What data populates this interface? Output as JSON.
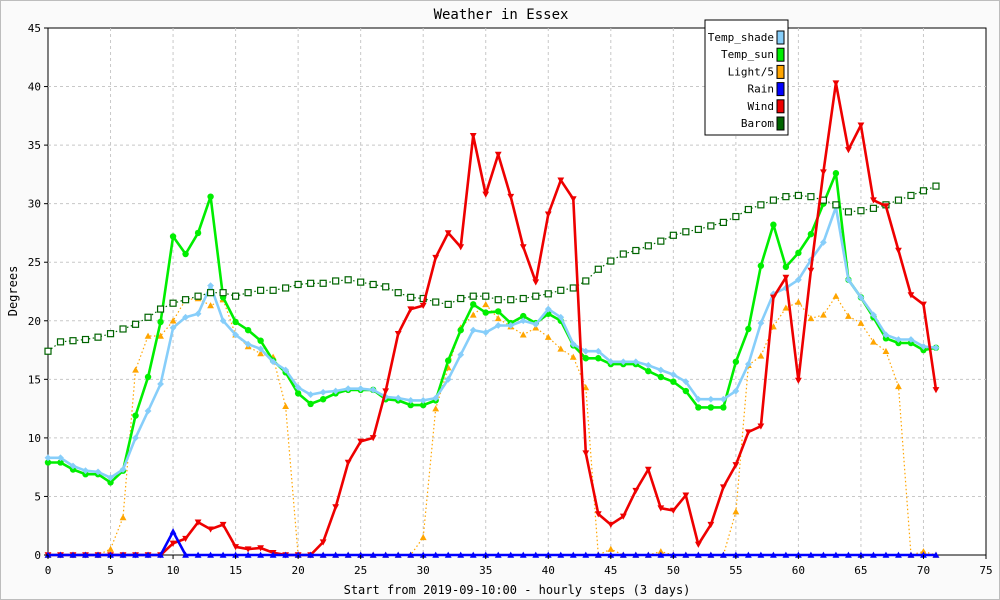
{
  "chart_data": {
    "type": "line",
    "title": "Weather in Essex",
    "xlabel": "Start from 2019-09-10:00 - hourly steps (3 days)",
    "ylabel": "Degrees",
    "xlim": [
      0,
      75
    ],
    "ylim": [
      0,
      45
    ],
    "x_ticks": [
      0,
      5,
      10,
      15,
      20,
      25,
      30,
      35,
      40,
      45,
      50,
      55,
      60,
      65,
      70,
      75
    ],
    "y_ticks": [
      0,
      5,
      10,
      15,
      20,
      25,
      30,
      35,
      40,
      45
    ],
    "grid": true,
    "legend_position": "top-right",
    "series": [
      {
        "name": "Temp_shade",
        "color": "#87cefa",
        "marker": "diamond",
        "line": "solid",
        "values": [
          8.3,
          8.3,
          7.6,
          7.2,
          7.1,
          6.6,
          7.3,
          10.0,
          12.3,
          14.6,
          19.4,
          20.3,
          20.6,
          23.0,
          20.0,
          18.8,
          18.0,
          17.6,
          16.5,
          15.8,
          14.3,
          13.7,
          13.9,
          14.0,
          14.2,
          14.2,
          14.1,
          13.5,
          13.4,
          13.2,
          13.2,
          13.4,
          15.0,
          17.1,
          19.2,
          19.0,
          19.6,
          19.6,
          20.0,
          19.7,
          21.0,
          20.3,
          18.0,
          17.4,
          17.4,
          16.5,
          16.5,
          16.5,
          16.2,
          15.8,
          15.4,
          14.8,
          13.3,
          13.3,
          13.3,
          14.0,
          16.3,
          19.8,
          22.3,
          22.8,
          23.5,
          25.2,
          26.7,
          29.7,
          23.5,
          22.0,
          20.5,
          18.8,
          18.4,
          18.4,
          17.8,
          17.7
        ]
      },
      {
        "name": "Temp_sun",
        "color": "#00ee00",
        "marker": "circle",
        "line": "solid",
        "values": [
          7.9,
          7.9,
          7.3,
          6.9,
          6.9,
          6.2,
          7.2,
          11.9,
          15.2,
          19.9,
          27.2,
          25.7,
          27.5,
          30.6,
          22.0,
          19.9,
          19.2,
          18.3,
          16.6,
          15.6,
          13.8,
          12.9,
          13.3,
          13.8,
          14.1,
          14.1,
          14.1,
          13.3,
          13.2,
          12.8,
          12.8,
          13.2,
          16.6,
          19.2,
          21.4,
          20.7,
          20.8,
          19.8,
          20.4,
          19.8,
          20.6,
          20.0,
          17.9,
          16.8,
          16.8,
          16.3,
          16.3,
          16.3,
          15.7,
          15.2,
          14.8,
          14.0,
          12.6,
          12.6,
          12.6,
          16.5,
          19.3,
          24.7,
          28.2,
          24.6,
          25.8,
          27.4,
          30.0,
          32.6,
          23.5,
          22.0,
          20.3,
          18.5,
          18.1,
          18.1,
          17.5,
          17.7
        ]
      },
      {
        "name": "Light/5",
        "color": "#ffa500",
        "marker": "triangle-up",
        "line": "dotted",
        "values": [
          0,
          0,
          0,
          0,
          0,
          0.5,
          3.2,
          15.8,
          18.7,
          18.7,
          20.0,
          21.8,
          21.9,
          21.3,
          21.8,
          18.8,
          17.8,
          17.2,
          16.9,
          12.7,
          0,
          0,
          0,
          0,
          0,
          0,
          0,
          0,
          0,
          0,
          1.5,
          12.5,
          16.0,
          19.4,
          20.5,
          21.4,
          20.2,
          19.5,
          18.8,
          19.4,
          18.6,
          17.6,
          16.9,
          14.3,
          0,
          0.5,
          0,
          0,
          0,
          0.3,
          0,
          0,
          0,
          0,
          0,
          3.7,
          16.2,
          17.0,
          19.5,
          21.1,
          21.6,
          20.2,
          20.5,
          22.1,
          20.4,
          19.8,
          18.2,
          17.4,
          14.4,
          0,
          0.3,
          0
        ]
      },
      {
        "name": "Rain",
        "color": "#0000ff",
        "marker": "triangle-up",
        "line": "solid",
        "values": [
          0,
          0,
          0,
          0,
          0,
          0,
          0,
          0,
          0,
          0,
          2.0,
          0,
          0,
          0,
          0,
          0,
          0,
          0,
          0,
          0,
          0,
          0,
          0,
          0,
          0,
          0,
          0,
          0,
          0,
          0,
          0,
          0,
          0,
          0,
          0,
          0,
          0,
          0,
          0,
          0,
          0,
          0,
          0,
          0,
          0,
          0,
          0,
          0,
          0,
          0,
          0,
          0,
          0,
          0,
          0,
          0,
          0,
          0,
          0,
          0,
          0,
          0,
          0,
          0,
          0,
          0,
          0,
          0,
          0,
          0,
          0,
          0
        ]
      },
      {
        "name": "Wind",
        "color": "#ee0000",
        "marker": "triangle-down",
        "line": "solid",
        "values": [
          0,
          0,
          0,
          0,
          0,
          0,
          0,
          0,
          0,
          0,
          1.0,
          1.4,
          2.8,
          2.2,
          2.6,
          0.7,
          0.5,
          0.6,
          0.2,
          0,
          0,
          0,
          1.1,
          4.1,
          7.9,
          9.7,
          10.0,
          14.0,
          18.9,
          21.0,
          21.3,
          25.4,
          27.5,
          26.3,
          35.8,
          30.8,
          34.2,
          30.6,
          26.3,
          23.3,
          29.1,
          32.0,
          30.4,
          8.7,
          3.5,
          2.6,
          3.3,
          5.5,
          7.3,
          4.0,
          3.8,
          5.1,
          0.9,
          2.6,
          5.8,
          7.7,
          10.5,
          11.0,
          22.0,
          23.7,
          14.9,
          24.3,
          32.7,
          40.3,
          34.6,
          36.7,
          30.3,
          29.8,
          26.0,
          22.2,
          21.4,
          14.1
        ]
      },
      {
        "name": "Barom",
        "color": "#006400",
        "marker": "square-open",
        "line": "dotted",
        "values": [
          17.4,
          18.2,
          18.3,
          18.4,
          18.6,
          18.9,
          19.3,
          19.7,
          20.3,
          21.0,
          21.5,
          21.8,
          22.1,
          22.4,
          22.4,
          22.1,
          22.4,
          22.6,
          22.6,
          22.8,
          23.1,
          23.2,
          23.2,
          23.4,
          23.5,
          23.3,
          23.1,
          22.9,
          22.4,
          22.0,
          21.9,
          21.6,
          21.4,
          21.9,
          22.1,
          22.1,
          21.8,
          21.8,
          21.9,
          22.1,
          22.3,
          22.6,
          22.8,
          23.4,
          24.4,
          25.1,
          25.7,
          26.0,
          26.4,
          26.8,
          27.3,
          27.6,
          27.8,
          28.1,
          28.4,
          28.9,
          29.5,
          29.9,
          30.3,
          30.6,
          30.7,
          30.6,
          30.3,
          29.9,
          29.3,
          29.4,
          29.6,
          29.9,
          30.3,
          30.7,
          31.1,
          31.5
        ]
      }
    ]
  }
}
